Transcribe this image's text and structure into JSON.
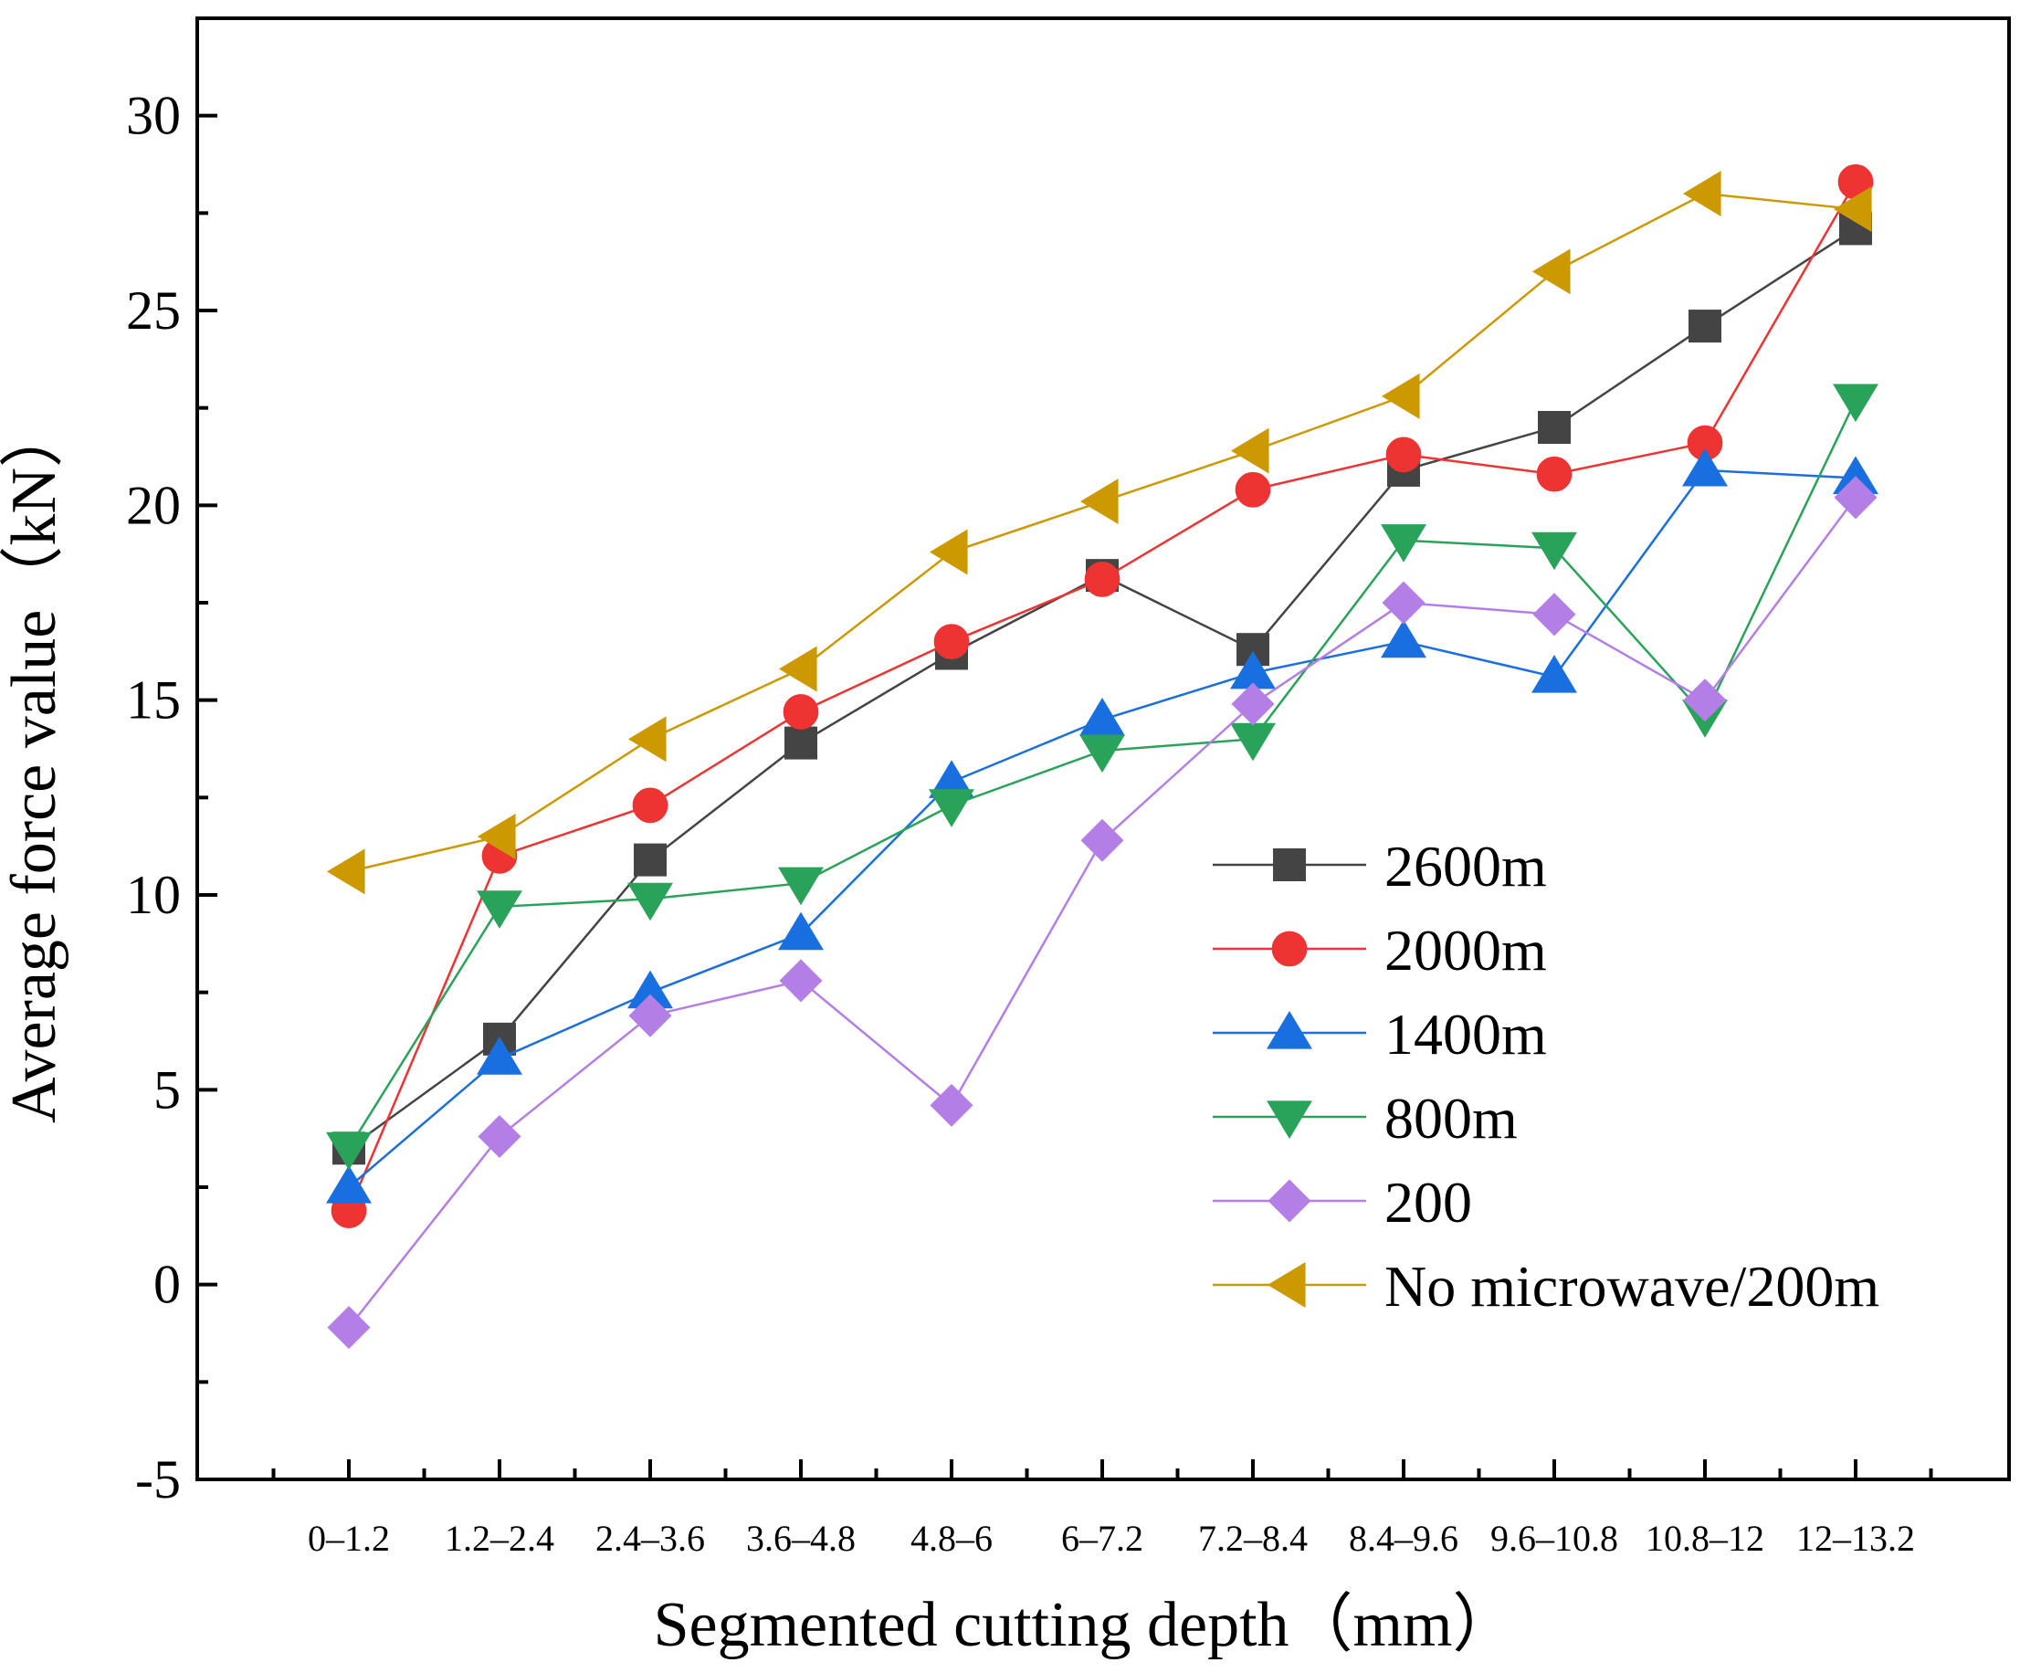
{
  "chart_data": {
    "type": "line",
    "title": "",
    "xlabel": "Segmented cutting depth（mm）",
    "ylabel": "Average force value（kN）",
    "ylim": [
      -5,
      32.5
    ],
    "yticks": [
      -5,
      0,
      5,
      10,
      15,
      20,
      25,
      30
    ],
    "grid": false,
    "legend_position": "right",
    "categories": [
      "0–1.2",
      "1.2–2.4",
      "2.4–3.6",
      "3.6–4.8",
      "4.8–6",
      "6–7.2",
      "7.2–8.4",
      "8.4–9.6",
      "9.6–10.8",
      "10.8–12",
      "12–13.2"
    ],
    "series": [
      {
        "name": "2600m",
        "marker": "square",
        "color": "#444444",
        "values": [
          3.5,
          6.3,
          10.9,
          13.9,
          16.2,
          18.2,
          16.3,
          20.9,
          22.0,
          24.6,
          27.1
        ]
      },
      {
        "name": "2000m",
        "marker": "circle",
        "color": "#ee3333",
        "values": [
          1.9,
          11.0,
          12.3,
          14.7,
          16.5,
          18.1,
          20.4,
          21.3,
          20.8,
          21.6,
          28.3
        ]
      },
      {
        "name": "1400m",
        "marker": "triangle-up",
        "color": "#1a6fe0",
        "values": [
          2.5,
          5.8,
          7.5,
          9.0,
          12.9,
          14.5,
          15.7,
          16.5,
          15.6,
          20.9,
          20.7
        ]
      },
      {
        "name": "800m",
        "marker": "triangle-down",
        "color": "#2aa35a",
        "values": [
          3.5,
          9.7,
          9.9,
          10.3,
          12.3,
          13.7,
          14.0,
          19.1,
          18.9,
          14.6,
          22.7
        ]
      },
      {
        "name": "200",
        "marker": "diamond",
        "color": "#b37fe6",
        "values": [
          -1.1,
          3.8,
          6.9,
          7.8,
          4.6,
          11.4,
          14.9,
          17.5,
          17.2,
          15.0,
          20.2
        ]
      },
      {
        "name": "No microwave/200m",
        "marker": "triangle-left",
        "color": "#cc9900",
        "values": [
          10.6,
          11.5,
          14.0,
          15.8,
          18.8,
          20.1,
          21.4,
          22.8,
          26.0,
          28.0,
          27.6
        ]
      }
    ]
  }
}
